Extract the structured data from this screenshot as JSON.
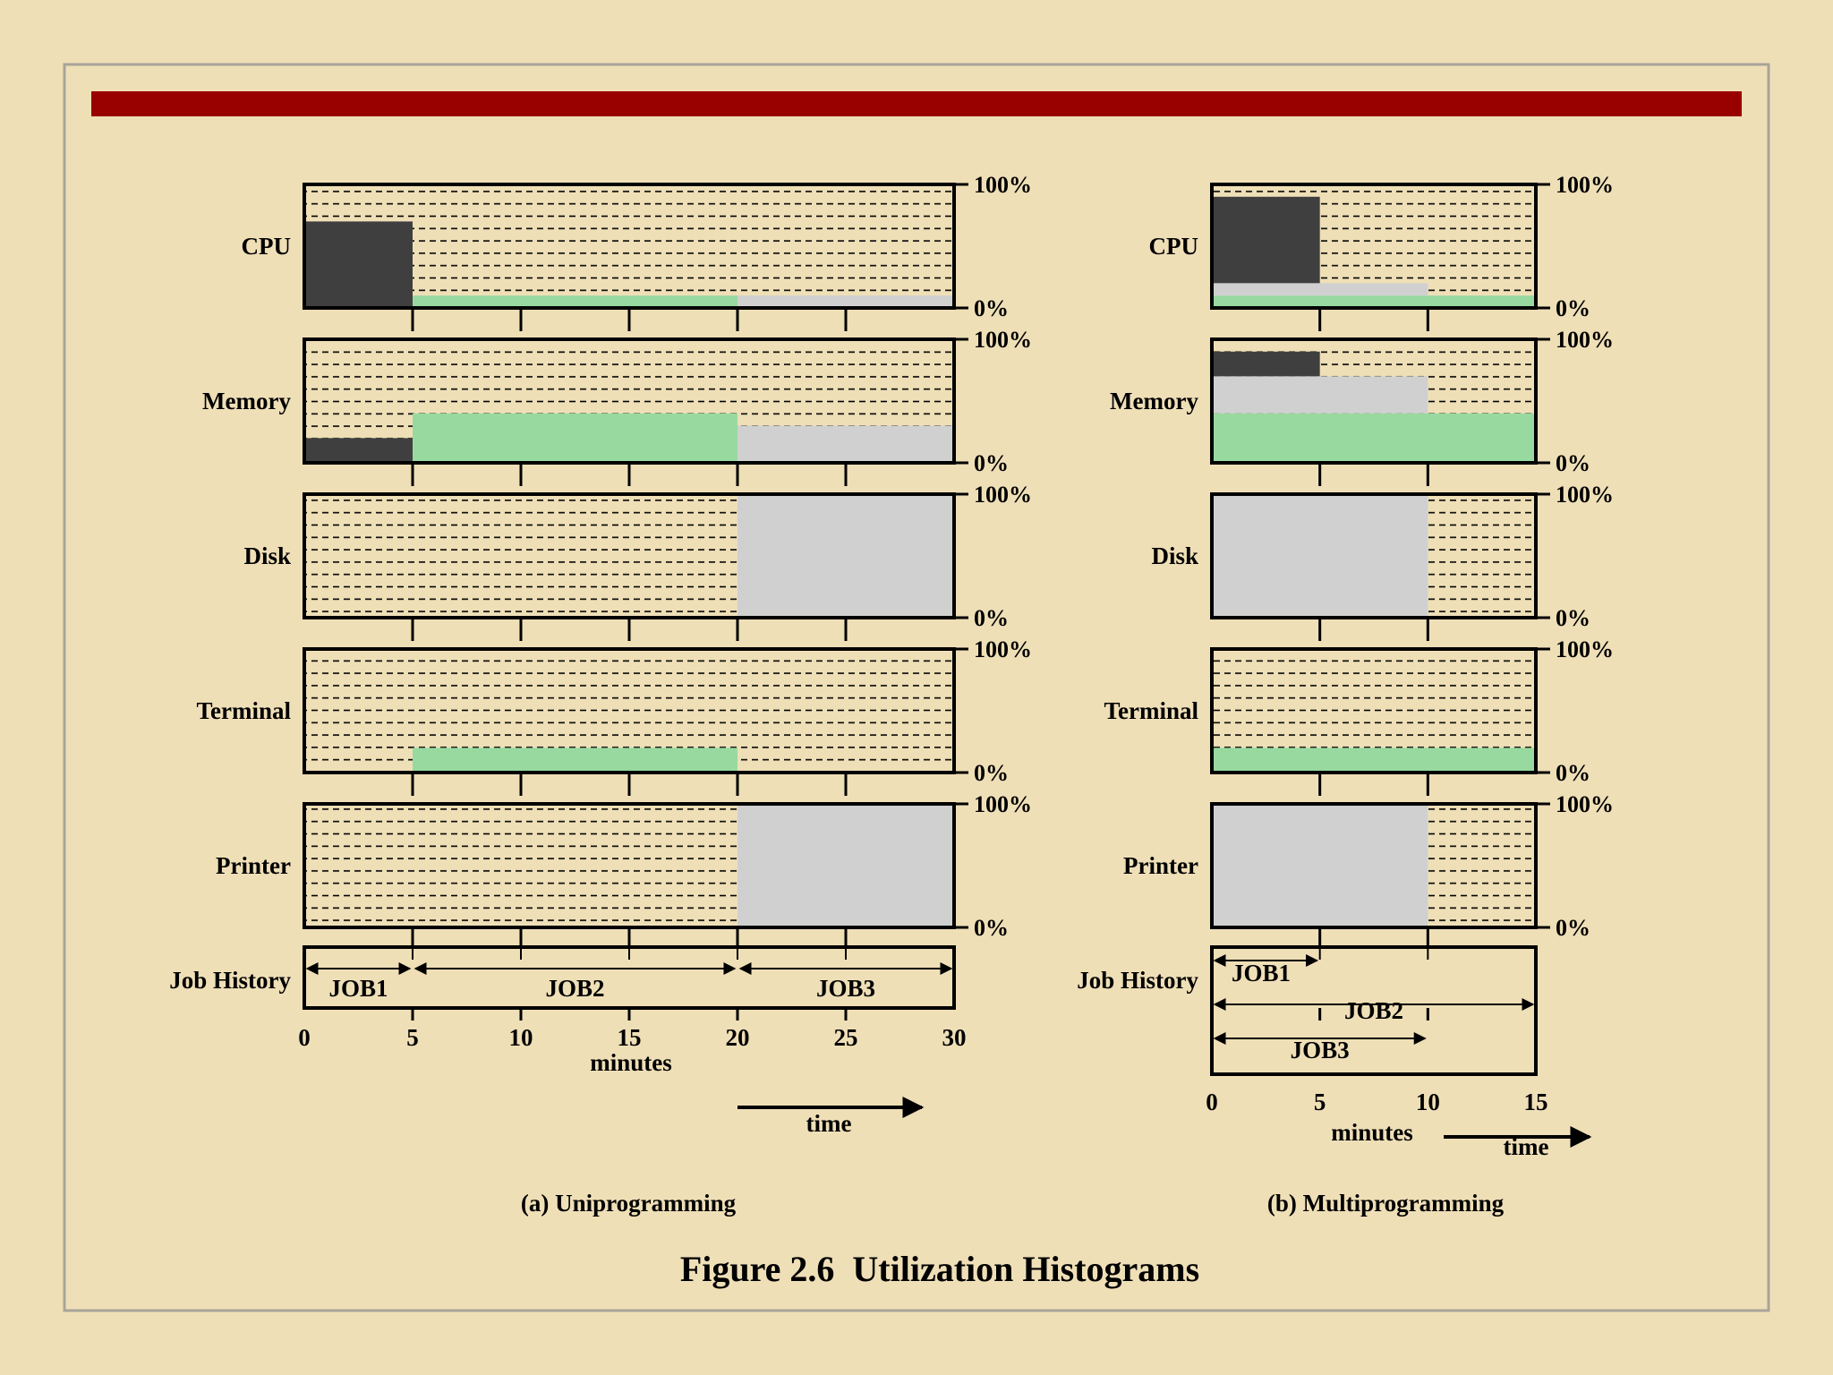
{
  "colors": {
    "background": "#efdfb7",
    "title_bar": "#990000",
    "job1": "#3f3f3f",
    "job2": "#98d9a0",
    "job3": "#d0d0d0",
    "hatch": "#000000"
  },
  "figure_title": "Figure 2.6  Utilization Histograms",
  "chart_data": [
    {
      "type": "bar",
      "caption": "(a) Uniprogramming",
      "resources": [
        "CPU",
        "Memory",
        "Disk",
        "Terminal",
        "Printer"
      ],
      "job_history_label": "Job History",
      "y_top_label": "100%",
      "y_bottom_label": "0%",
      "xlim": [
        0,
        30
      ],
      "x_ticks": [
        "0",
        "5",
        "10",
        "15",
        "20",
        "25",
        "30"
      ],
      "x_tick_values": [
        0,
        5,
        10,
        15,
        20,
        25,
        30
      ],
      "xlabel": "minutes",
      "time_label": "time",
      "series": [
        {
          "name": "JOB1",
          "segments": [
            {
              "resource": "CPU",
              "start": 0,
              "end": 5,
              "from": 0,
              "to": 70
            },
            {
              "resource": "Memory",
              "start": 0,
              "end": 5,
              "from": 0,
              "to": 20
            }
          ]
        },
        {
          "name": "JOB2",
          "segments": [
            {
              "resource": "CPU",
              "start": 5,
              "end": 20,
              "from": 0,
              "to": 10
            },
            {
              "resource": "Memory",
              "start": 5,
              "end": 20,
              "from": 0,
              "to": 40
            },
            {
              "resource": "Terminal",
              "start": 5,
              "end": 20,
              "from": 0,
              "to": 20
            }
          ]
        },
        {
          "name": "JOB3",
          "segments": [
            {
              "resource": "CPU",
              "start": 20,
              "end": 30,
              "from": 0,
              "to": 10
            },
            {
              "resource": "Memory",
              "start": 20,
              "end": 30,
              "from": 0,
              "to": 30
            },
            {
              "resource": "Disk",
              "start": 20,
              "end": 30,
              "from": 0,
              "to": 100
            },
            {
              "resource": "Printer",
              "start": 20,
              "end": 30,
              "from": 0,
              "to": 100
            }
          ]
        }
      ],
      "jobs": [
        {
          "name": "JOB1",
          "start": 0,
          "end": 5
        },
        {
          "name": "JOB2",
          "start": 5,
          "end": 20
        },
        {
          "name": "JOB3",
          "start": 20,
          "end": 30
        }
      ]
    },
    {
      "type": "bar",
      "caption": "(b) Multiprogramming",
      "resources": [
        "CPU",
        "Memory",
        "Disk",
        "Terminal",
        "Printer"
      ],
      "job_history_label": "Job History",
      "y_top_label": "100%",
      "y_bottom_label": "0%",
      "xlim": [
        0,
        15
      ],
      "x_ticks": [
        "0",
        "5",
        "10",
        "15"
      ],
      "x_tick_values": [
        0,
        5,
        10,
        15
      ],
      "xlabel": "minutes",
      "time_label": "time",
      "series": [
        {
          "name": "JOB1",
          "segments": [
            {
              "resource": "CPU",
              "start": 0,
              "end": 5,
              "from": 20,
              "to": 90
            },
            {
              "resource": "Memory",
              "start": 0,
              "end": 5,
              "from": 70,
              "to": 90
            }
          ]
        },
        {
          "name": "JOB2",
          "segments": [
            {
              "resource": "CPU",
              "start": 0,
              "end": 15,
              "from": 0,
              "to": 10
            },
            {
              "resource": "Memory",
              "start": 0,
              "end": 15,
              "from": 0,
              "to": 40
            },
            {
              "resource": "Terminal",
              "start": 0,
              "end": 15,
              "from": 0,
              "to": 20
            }
          ]
        },
        {
          "name": "JOB3",
          "segments": [
            {
              "resource": "CPU",
              "start": 0,
              "end": 10,
              "from": 10,
              "to": 20
            },
            {
              "resource": "Memory",
              "start": 0,
              "end": 10,
              "from": 40,
              "to": 70
            },
            {
              "resource": "Disk",
              "start": 0,
              "end": 10,
              "from": 0,
              "to": 100
            },
            {
              "resource": "Printer",
              "start": 0,
              "end": 10,
              "from": 0,
              "to": 100
            }
          ]
        }
      ],
      "jobs": [
        {
          "name": "JOB1",
          "start": 0,
          "end": 5
        },
        {
          "name": "JOB2",
          "start": 0,
          "end": 15
        },
        {
          "name": "JOB3",
          "start": 0,
          "end": 10
        }
      ]
    }
  ]
}
